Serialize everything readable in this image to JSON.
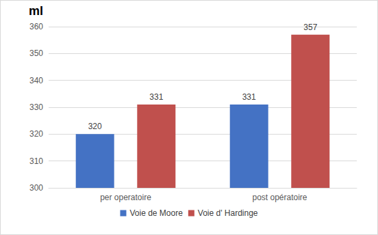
{
  "chart_data": {
    "type": "bar",
    "y_label": "ml",
    "categories": [
      "per operatoire",
      "post opératoire"
    ],
    "series": [
      {
        "name": "Voie de Moore",
        "color": "#4472c4",
        "values": [
          320,
          331
        ]
      },
      {
        "name": "Voie d' Hardinge",
        "color": "#c0504d",
        "values": [
          331,
          357
        ]
      }
    ],
    "ylim": [
      300,
      360
    ],
    "yticks": [
      300,
      310,
      320,
      330,
      340,
      350,
      360
    ],
    "grid": true,
    "legend": "bottom",
    "data_labels": true
  }
}
